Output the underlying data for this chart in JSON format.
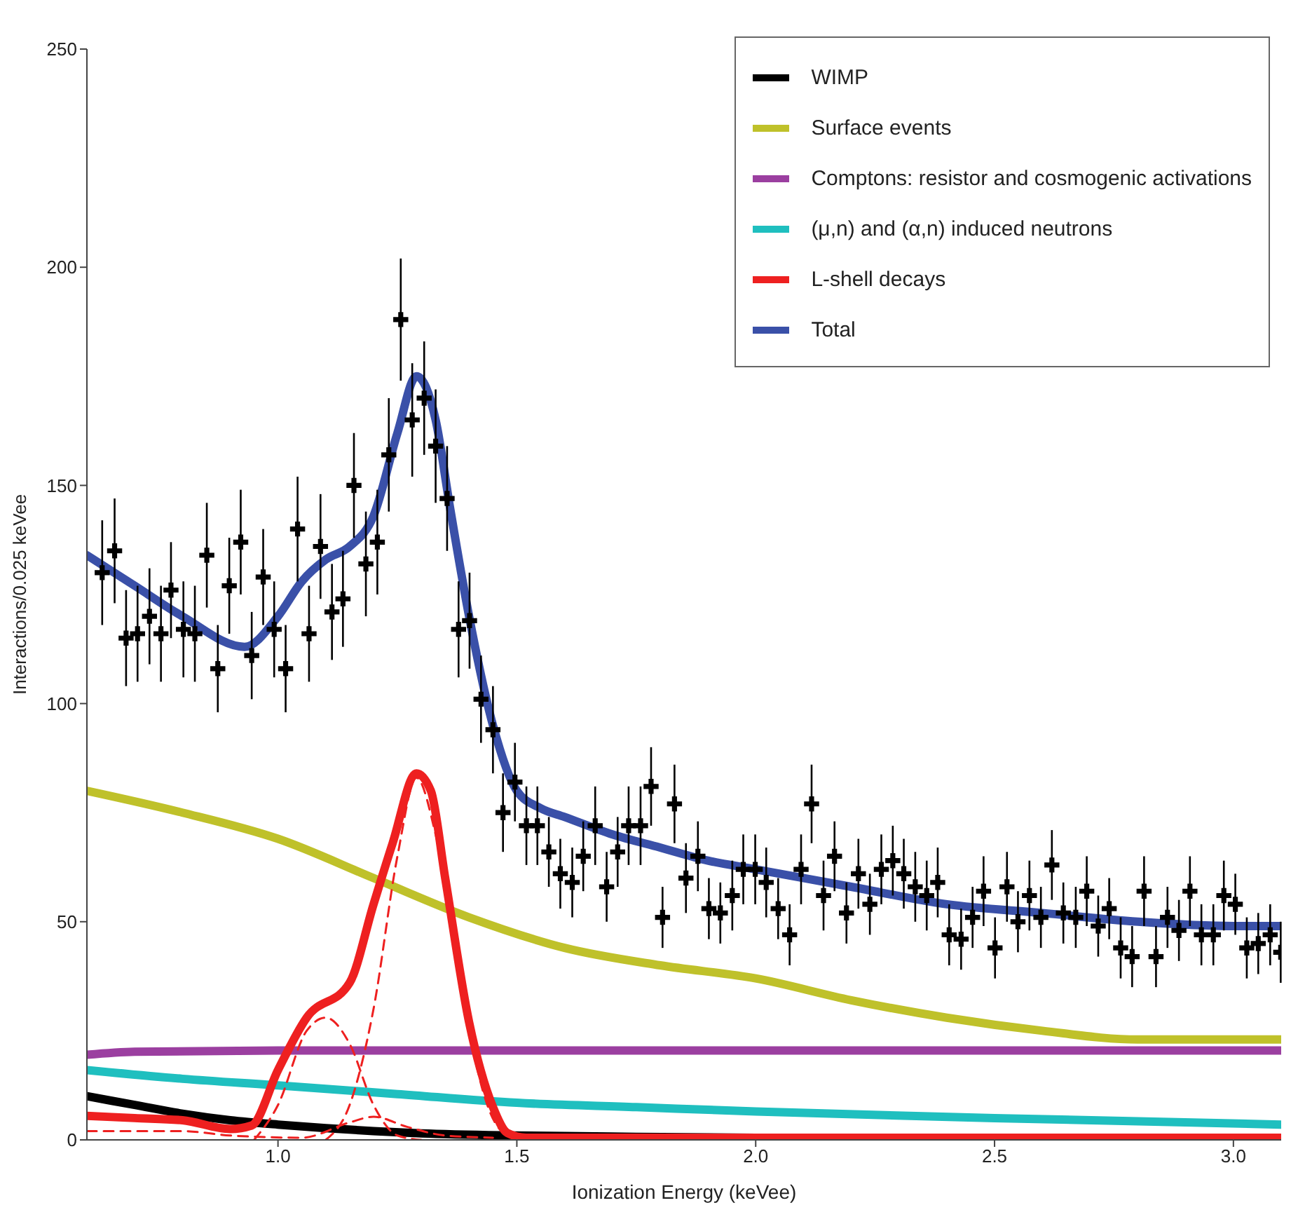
{
  "chart_data": {
    "type": "line",
    "xlabel": "Ionization Energy (keVee)",
    "ylabel": "Interactions/0.025 keVee",
    "xlim": [
      0.6,
      3.1
    ],
    "xticks": [
      {
        "value": 1,
        "label": "1.0"
      },
      {
        "value": 1.5,
        "label": "1.5"
      },
      {
        "value": 2,
        "label": "2.0"
      },
      {
        "value": 2.5,
        "label": "2.5"
      },
      {
        "value": 3,
        "label": "3.0"
      }
    ],
    "ylim": [
      0,
      250
    ],
    "yticks": [
      0,
      50,
      100,
      150,
      200,
      250
    ],
    "legend": "top right",
    "marker": "none",
    "line_style": "solid",
    "series": [
      {
        "name": "WIMP",
        "color": "#000000",
        "x": [
          0.6,
          0.7,
          0.8,
          0.9,
          1.0,
          1.1,
          1.2,
          1.3,
          1.5,
          1.75,
          2.0,
          2.5,
          3.1
        ],
        "values": [
          10,
          8,
          6,
          4.5,
          3.5,
          2.7,
          2,
          1.5,
          1,
          0.7,
          0.5,
          0.4,
          0.3
        ]
      },
      {
        "name": "Surface events",
        "color": "#bfc12a",
        "x": [
          0.6,
          0.8,
          1.0,
          1.2,
          1.4,
          1.6,
          1.8,
          2.0,
          2.2,
          2.4,
          2.6,
          2.8,
          3.1
        ],
        "values": [
          80,
          75,
          69,
          60,
          51,
          44,
          40,
          37,
          32,
          28,
          25,
          23,
          23
        ]
      },
      {
        "name": "Comptons: resistor and cosmogenic activations",
        "color": "#9b3fa0",
        "x": [
          0.6,
          0.7,
          1.0,
          1.5,
          2.0,
          2.5,
          3.1
        ],
        "values": [
          19.5,
          20.2,
          20.5,
          20.5,
          20.5,
          20.5,
          20.5
        ]
      },
      {
        "name": "(μ,n) and (α,n) induced neutrons",
        "color": "#1fbfbf",
        "x": [
          0.6,
          0.8,
          1.0,
          1.25,
          1.5,
          1.75,
          2.0,
          2.5,
          3.1
        ],
        "values": [
          16,
          14,
          12.5,
          10.5,
          8.5,
          7.5,
          6.5,
          5,
          3.5
        ]
      },
      {
        "name": "L-shell decays",
        "color": "#ee2020",
        "x": [
          0.6,
          0.7,
          0.8,
          0.9,
          0.945,
          1.0,
          1.06,
          1.15,
          1.2,
          1.24,
          1.29,
          1.32,
          1.35,
          1.4,
          1.45,
          1.48,
          1.52,
          2.0,
          3.1
        ],
        "values": [
          5.5,
          5,
          4.5,
          2.5,
          3.3,
          16,
          28,
          36,
          54,
          68,
          84,
          80,
          60,
          27,
          7.5,
          1.6,
          0.5,
          0.5,
          0.5
        ]
      },
      {
        "name": "Total",
        "color": "#3a50a8",
        "x": [
          0.6,
          0.7,
          0.8,
          0.93,
          1.0,
          1.05,
          1.1,
          1.15,
          1.2,
          1.25,
          1.29,
          1.33,
          1.36,
          1.4,
          1.45,
          1.5,
          1.55,
          1.6,
          1.7,
          1.8,
          1.9,
          2.0,
          2.2,
          2.4,
          2.6,
          2.8,
          3.0,
          3.1
        ],
        "values": [
          134,
          127,
          120,
          113,
          120,
          128,
          133,
          136,
          143,
          162,
          175,
          165,
          145,
          120,
          95,
          80,
          76,
          74,
          70,
          67,
          64,
          62,
          58,
          54,
          52,
          50,
          49,
          49
        ]
      },
      {
        "color": "#ee2020",
        "line_style": "dashed",
        "x": [
          0.95,
          1.0,
          1.06,
          1.1,
          1.15,
          1.2,
          1.25,
          1.3
        ],
        "values": [
          0,
          8,
          25,
          28,
          22,
          8,
          1,
          0
        ]
      },
      {
        "color": "#ee2020",
        "line_style": "dashed",
        "x": [
          1.1,
          1.15,
          1.2,
          1.25,
          1.29,
          1.33,
          1.38,
          1.42,
          1.46,
          1.5
        ],
        "values": [
          0,
          8,
          30,
          65,
          83,
          70,
          40,
          15,
          3,
          0
        ]
      },
      {
        "color": "#ee2020",
        "line_style": "dashed",
        "x": [
          0.6,
          0.8,
          0.9,
          1.05,
          1.15,
          1.2,
          1.27,
          1.35,
          1.45
        ],
        "values": [
          2,
          2,
          1,
          0.5,
          4,
          5.3,
          3,
          1,
          0.5
        ]
      },
      {
        "type": "scatter",
        "color": "#000000",
        "marker": "cross",
        "x": [
          0.632,
          0.658,
          0.682,
          0.706,
          0.731,
          0.755,
          0.776,
          0.802,
          0.826,
          0.851,
          0.874,
          0.898,
          0.922,
          0.945,
          0.969,
          0.992,
          1.016,
          1.041,
          1.065,
          1.089,
          1.113,
          1.136,
          1.159,
          1.184,
          1.208,
          1.232,
          1.257,
          1.281,
          1.306,
          1.33,
          1.354,
          1.378,
          1.401,
          1.425,
          1.45,
          1.471,
          1.496,
          1.52,
          1.543,
          1.567,
          1.591,
          1.616,
          1.639,
          1.664,
          1.688,
          1.711,
          1.734,
          1.759,
          1.781,
          1.805,
          1.83,
          1.854,
          1.879,
          1.902,
          1.926,
          1.951,
          1.974,
          1.999,
          2.022,
          2.047,
          2.071,
          2.095,
          2.117,
          2.142,
          2.165,
          2.19,
          2.215,
          2.239,
          2.263,
          2.287,
          2.31,
          2.334,
          2.358,
          2.381,
          2.405,
          2.43,
          2.454,
          2.477,
          2.501,
          2.526,
          2.549,
          2.573,
          2.597,
          2.62,
          2.644,
          2.67,
          2.693,
          2.717,
          2.74,
          2.764,
          2.788,
          2.813,
          2.838,
          2.862,
          2.886,
          2.909,
          2.933,
          2.958,
          2.98,
          3.004,
          3.028,
          3.052,
          3.077,
          3.099
        ],
        "values": [
          130,
          135,
          115,
          116,
          120,
          116,
          126,
          117,
          116,
          134,
          108,
          127,
          137,
          111,
          129,
          117,
          108,
          140,
          116,
          136,
          121,
          124,
          150,
          132,
          137,
          157,
          188,
          165,
          170,
          159,
          147,
          117,
          119,
          101,
          94,
          75,
          82,
          72,
          72,
          66,
          61,
          59,
          65,
          72,
          58,
          66,
          72,
          72,
          81,
          51,
          77,
          60,
          65,
          53,
          52,
          56,
          62,
          62,
          59,
          53,
          47,
          62,
          77,
          56,
          65,
          52,
          61,
          54,
          62,
          64,
          61,
          58,
          56,
          59,
          47,
          46,
          51,
          57,
          44,
          58,
          50,
          56,
          51,
          63,
          52,
          51,
          57,
          49,
          53,
          44,
          42,
          57,
          42,
          51,
          48,
          57,
          47,
          47,
          56,
          54,
          44,
          45,
          47,
          43
        ],
        "errors": [
          12,
          12,
          11,
          11,
          11,
          11,
          11,
          11,
          11,
          12,
          10,
          11,
          12,
          10,
          11,
          11,
          10,
          12,
          11,
          12,
          11,
          11,
          12,
          12,
          12,
          13,
          14,
          13,
          13,
          13,
          12,
          11,
          11,
          10,
          10,
          9,
          9,
          9,
          9,
          8,
          8,
          8,
          8,
          9,
          8,
          8,
          9,
          9,
          9,
          7,
          9,
          8,
          8,
          7,
          7,
          8,
          8,
          8,
          8,
          7,
          7,
          8,
          9,
          8,
          8,
          7,
          8,
          7,
          8,
          8,
          8,
          8,
          8,
          8,
          7,
          7,
          7,
          8,
          7,
          8,
          7,
          8,
          7,
          8,
          7,
          7,
          8,
          7,
          7,
          7,
          7,
          8,
          7,
          7,
          7,
          8,
          7,
          7,
          8,
          7,
          7,
          7,
          7,
          7
        ]
      }
    ]
  }
}
